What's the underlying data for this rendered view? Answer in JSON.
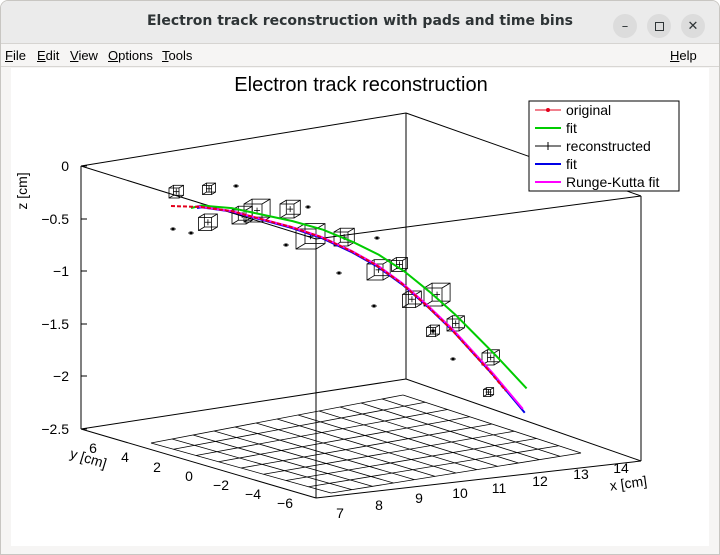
{
  "window": {
    "title": "Electron track reconstruction with pads and time bins",
    "minimize_icon": "minimize-icon",
    "maximize_icon": "maximize-icon",
    "close_icon": "close-icon"
  },
  "menu": {
    "file": {
      "first": "F",
      "rest": "ile"
    },
    "edit": {
      "first": "E",
      "rest": "dit"
    },
    "view": {
      "first": "V",
      "rest": "iew"
    },
    "options": {
      "first": "O",
      "rest": "ptions"
    },
    "tools": {
      "first": "T",
      "rest": "ools"
    },
    "help": {
      "first": "H",
      "rest": "elp"
    }
  },
  "plot": {
    "title": "Electron track reconstruction",
    "z_axis_label": "z [cm]",
    "y_axis_label": "y [cm]",
    "x_axis_label": "x [cm]",
    "z_ticks": [
      "0",
      "−0.5",
      "−1",
      "−1.5",
      "−2",
      "−2.5"
    ],
    "y_ticks": [
      "6",
      "4",
      "2",
      "0",
      "−2",
      "−4",
      "−6"
    ],
    "x_ticks": [
      "7",
      "8",
      "9",
      "10",
      "11",
      "12",
      "13",
      "14"
    ],
    "legend": [
      {
        "label": "original",
        "color": "#e3001b",
        "style": "line-dot"
      },
      {
        "label": "fit",
        "color": "#00cc00",
        "style": "line"
      },
      {
        "label": "reconstructed",
        "color": "#000000",
        "style": "line-cross"
      },
      {
        "label": "fit",
        "color": "#0000e6",
        "style": "line"
      },
      {
        "label": "Runge-Kutta fit",
        "color": "#ff00ff",
        "style": "line"
      }
    ],
    "colors": {
      "original": "#e3001b",
      "fit_green": "#00cc00",
      "fit_blue": "#0000e6",
      "runge_kutta": "#ff00ff"
    }
  }
}
